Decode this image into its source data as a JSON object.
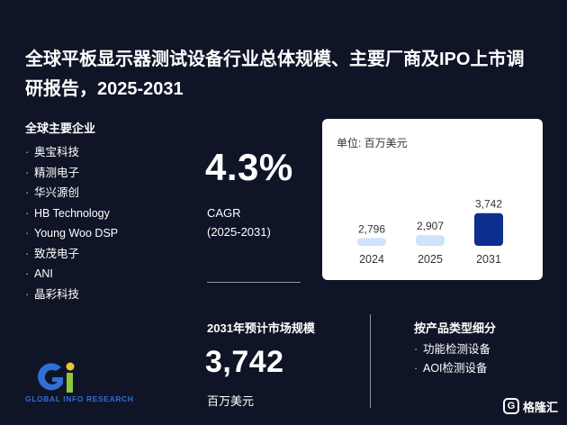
{
  "title": "全球平板显示器测试设备行业总体规模、主要厂商及IPO上市调研报告，2025-2031",
  "companies": {
    "heading": "全球主要企业",
    "items": [
      "奥宝科技",
      "精测电子",
      "华兴源创",
      "HB Technology",
      "Young Woo DSP",
      "致茂电子",
      "ANI",
      "晶彩科技"
    ]
  },
  "cagr": {
    "value": "4.3%",
    "label": "CAGR",
    "period": "(2025-2031)"
  },
  "market_2031": {
    "heading": "2031年预计市场规模",
    "value": "3,742",
    "unit": "百万美元"
  },
  "segments": {
    "heading": "按产品类型细分",
    "items": [
      "功能检测设备",
      "AOI检测设备"
    ]
  },
  "chart_data": {
    "type": "bar",
    "unit_label": "单位: 百万美元",
    "categories": [
      "2024",
      "2025",
      "2031"
    ],
    "values": [
      2796,
      2907,
      3742
    ],
    "value_labels": [
      "2,796",
      "2,907",
      "3,742"
    ],
    "colors": [
      "#cfe3fa",
      "#cfe3fa",
      "#0d2f8f"
    ],
    "ylim": [
      2500,
      3800
    ],
    "grid": false
  },
  "logo": {
    "text": "GLOBAL INFO RESEARCH"
  },
  "badge": {
    "icon": "g-icon",
    "text": "格隆汇"
  }
}
